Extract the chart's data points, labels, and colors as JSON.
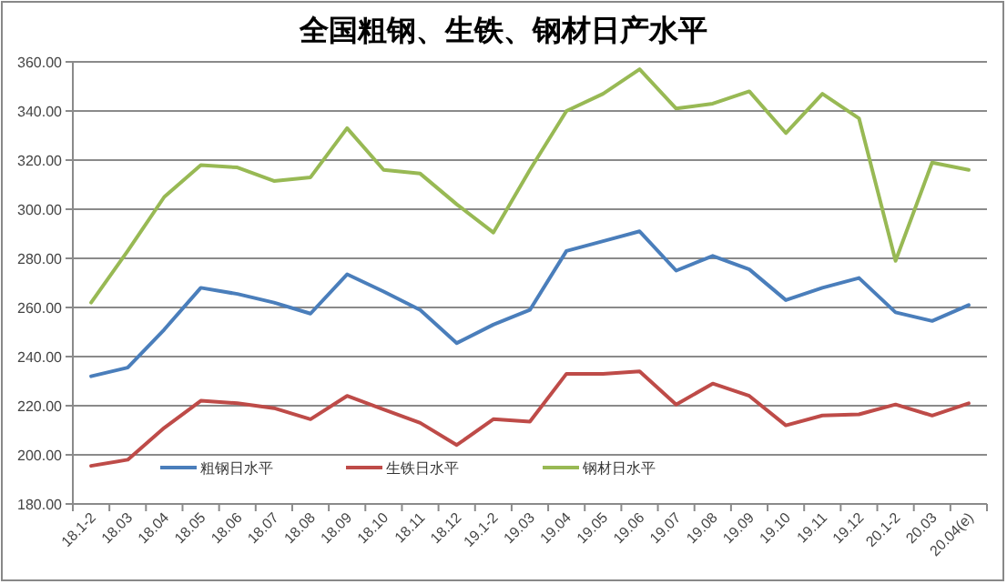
{
  "chart_data": {
    "type": "line",
    "title": "全国粗钢、生铁、钢材日产水平",
    "categories": [
      "18.1-2",
      "18.03",
      "18.04",
      "18.05",
      "18.06",
      "18.07",
      "18.08",
      "18.09",
      "18.10",
      "18.11",
      "18.12",
      "19.1-2",
      "19.03",
      "19.04",
      "19.05",
      "19.06",
      "19.07",
      "19.08",
      "19.09",
      "19.10",
      "19.11",
      "19.12",
      "20.1-2",
      "20.03",
      "20.04(e)"
    ],
    "series": [
      {
        "name": "粗钢日水平",
        "color": "#4a7ebb",
        "values": [
          232,
          235.5,
          251,
          268,
          265.5,
          262,
          257.5,
          273.5,
          266.5,
          259,
          245.5,
          253,
          259,
          283,
          287,
          291,
          275,
          281,
          275.5,
          263,
          268,
          272,
          258,
          254.5,
          261
        ]
      },
      {
        "name": "生铁日水平",
        "color": "#be4b48",
        "values": [
          195.5,
          198,
          211,
          222,
          221,
          219,
          214.5,
          224,
          218.5,
          213,
          204,
          214.5,
          213.5,
          233,
          233,
          234,
          220.5,
          229,
          224,
          212,
          216,
          216.5,
          220.5,
          216,
          221
        ]
      },
      {
        "name": "钢材日水平",
        "color": "#98b954",
        "values": [
          262,
          283,
          305,
          318,
          317,
          311.5,
          313,
          333,
          316,
          314.5,
          302,
          290.5,
          316,
          340,
          347,
          357,
          341,
          343,
          348,
          331,
          347,
          337,
          279,
          319,
          316
        ]
      }
    ],
    "ylim": [
      180,
      360
    ],
    "yticks": [
      {
        "value": 180,
        "label": "180.00"
      },
      {
        "value": 200,
        "label": "200.00"
      },
      {
        "value": 220,
        "label": "220.00"
      },
      {
        "value": 240,
        "label": "240.00"
      },
      {
        "value": 260,
        "label": "260.00"
      },
      {
        "value": 280,
        "label": "280.00"
      },
      {
        "value": 300,
        "label": "300.00"
      },
      {
        "value": 320,
        "label": "320.00"
      },
      {
        "value": 340,
        "label": "340.00"
      },
      {
        "value": 360,
        "label": "360.00"
      }
    ],
    "grid": "y",
    "legend": "bottom"
  }
}
